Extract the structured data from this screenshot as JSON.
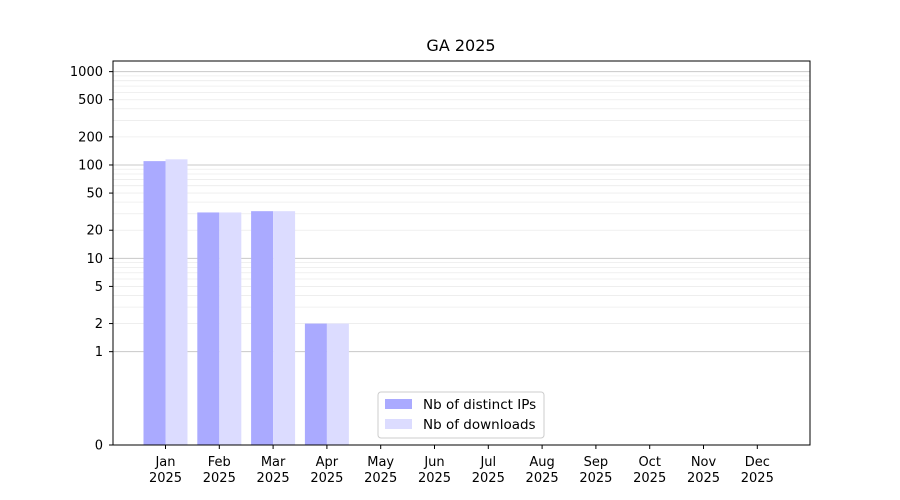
{
  "chart_data": {
    "type": "bar",
    "title": "GA 2025",
    "xlabel": "",
    "ylabel": "",
    "yscale": "symlog",
    "ylim": [
      0,
      1300
    ],
    "y_ticks": [
      0,
      1,
      2,
      5,
      10,
      20,
      50,
      100,
      200,
      500,
      1000
    ],
    "y_tick_labels": [
      "0",
      "1",
      "2",
      "5",
      "10",
      "20",
      "50",
      "100",
      "200",
      "500",
      "1000"
    ],
    "categories": [
      [
        "Jan",
        "2025"
      ],
      [
        "Feb",
        "2025"
      ],
      [
        "Mar",
        "2025"
      ],
      [
        "Apr",
        "2025"
      ],
      [
        "May",
        "2025"
      ],
      [
        "Jun",
        "2025"
      ],
      [
        "Jul",
        "2025"
      ],
      [
        "Aug",
        "2025"
      ],
      [
        "Sep",
        "2025"
      ],
      [
        "Oct",
        "2025"
      ],
      [
        "Nov",
        "2025"
      ],
      [
        "Dec",
        "2025"
      ]
    ],
    "series": [
      {
        "name": "Nb of distinct IPs",
        "color": "#aaaaff",
        "values": [
          110,
          31,
          32,
          2,
          0,
          0,
          0,
          0,
          0,
          0,
          0,
          0
        ]
      },
      {
        "name": "Nb of downloads",
        "color": "#dcdcff",
        "values": [
          115,
          31,
          32,
          2,
          0,
          0,
          0,
          0,
          0,
          0,
          0,
          0
        ]
      }
    ],
    "grid": true,
    "legend_position": "lower-center"
  }
}
